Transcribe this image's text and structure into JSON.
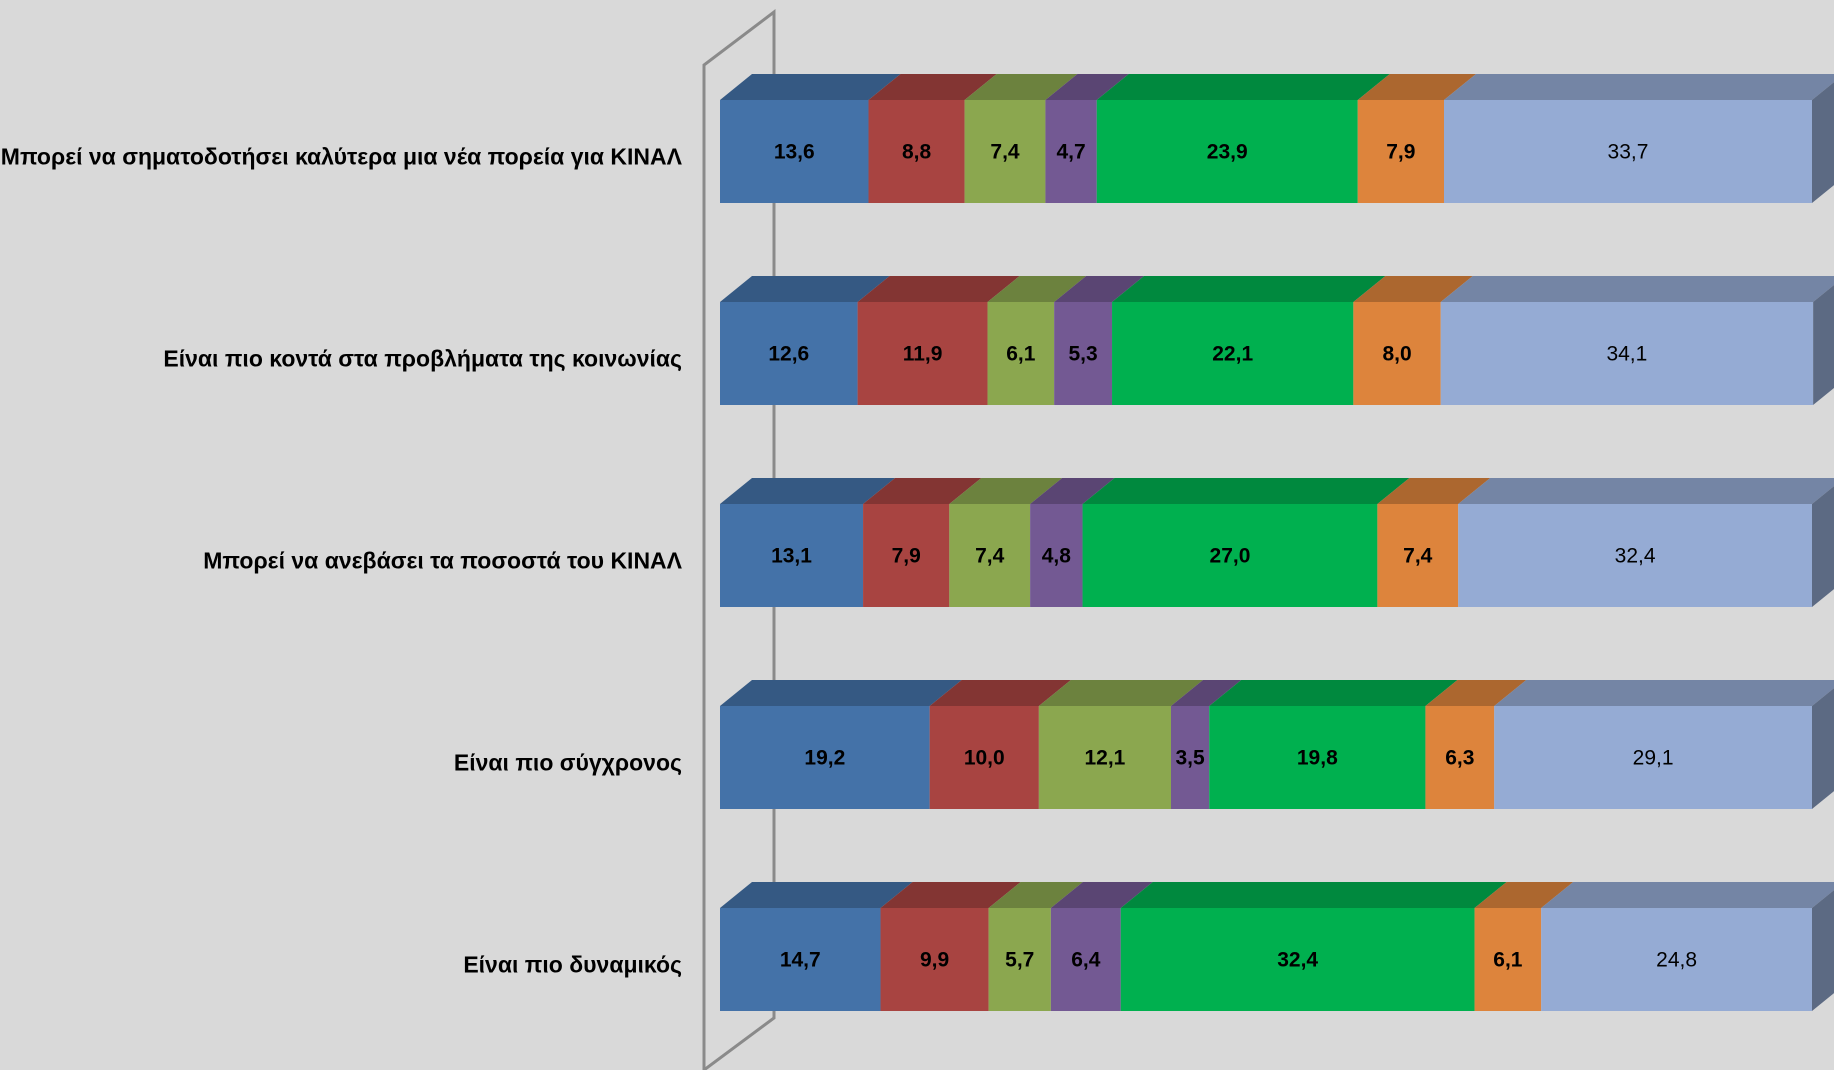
{
  "chart_data": {
    "type": "bar",
    "orientation": "horizontal",
    "stacked": true,
    "stack_total": 100,
    "three_d": true,
    "legend": "none",
    "grid": false,
    "categories": [
      "Μπορεί να σηματοδοτήσει καλύτερα μια νέα πορεία για  ΚΙΝΑΛ",
      "Είναι πιο κοντά στα προβλήματα της κοινωνίας",
      "Μπορεί να ανεβάσει τα ποσοστά του ΚΙΝΑΛ",
      "Είναι πιο σύγχρονος",
      "Είναι πιο δυναμικός"
    ],
    "series": [
      {
        "color": "#4472a8",
        "values": [
          13.6,
          12.6,
          13.1,
          19.2,
          14.7
        ],
        "labels": [
          "13,6",
          "12,6",
          "13,1",
          "19,2",
          "14,7"
        ],
        "bold": true
      },
      {
        "color": "#a84441",
        "values": [
          8.8,
          11.9,
          7.9,
          10.0,
          9.9
        ],
        "labels": [
          "8,8",
          "11,9",
          "7,9",
          "10,0",
          "9,9"
        ],
        "bold": true
      },
      {
        "color": "#8ba74f",
        "values": [
          7.4,
          6.1,
          7.4,
          12.1,
          5.7
        ],
        "labels": [
          "7,4",
          "6,1",
          "7,4",
          "12,1",
          "5,7"
        ],
        "bold": true
      },
      {
        "color": "#735993",
        "values": [
          4.7,
          5.3,
          4.8,
          3.5,
          6.4
        ],
        "labels": [
          "4,7",
          "5,3",
          "4,8",
          "3,5",
          "6,4"
        ],
        "bold": true
      },
      {
        "color": "#00b04f",
        "values": [
          23.9,
          22.1,
          27.0,
          19.8,
          32.4
        ],
        "labels": [
          "23,9",
          "22,1",
          "27,0",
          "19,8",
          "32,4"
        ],
        "bold": true
      },
      {
        "color": "#dd843c",
        "values": [
          7.9,
          8.0,
          7.4,
          6.3,
          6.1
        ],
        "labels": [
          "7,9",
          "8,0",
          "7,4",
          "6,3",
          "6,1"
        ],
        "bold": true
      },
      {
        "color": "#95abd4",
        "values": [
          33.7,
          34.1,
          32.4,
          29.1,
          24.8
        ],
        "labels": [
          "33,7",
          "34,1",
          "32,4",
          "29,1",
          "24,8"
        ],
        "bold": false
      }
    ]
  }
}
